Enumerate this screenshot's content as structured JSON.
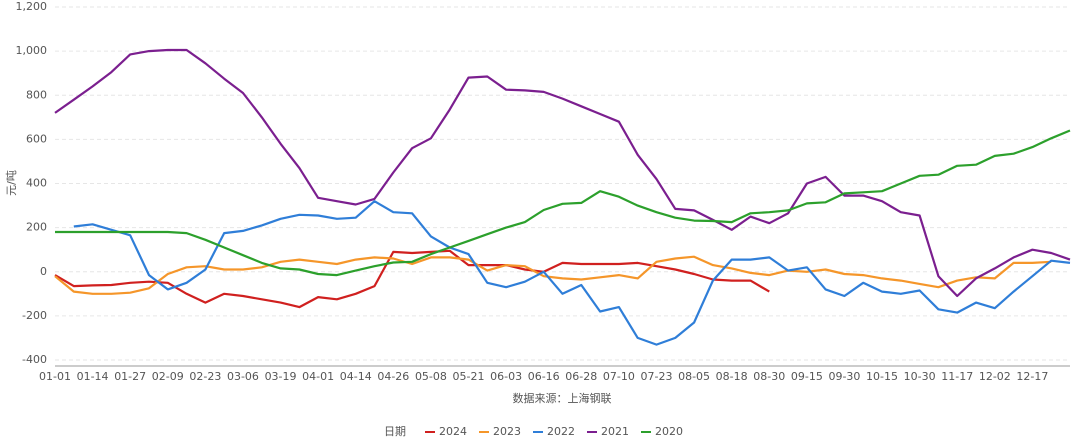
{
  "chart_data": {
    "type": "line",
    "y_label": "元/吨",
    "source": "数据来源：上海钢联",
    "legend_title": "日期",
    "categories": [
      "01-01",
      null,
      "01-14",
      null,
      "01-27",
      null,
      "02-09",
      null,
      "02-23",
      null,
      "03-06",
      null,
      "03-19",
      null,
      "04-01",
      null,
      "04-14",
      null,
      "04-26",
      null,
      "05-08",
      null,
      "05-21",
      null,
      "06-03",
      null,
      "06-16",
      null,
      "06-28",
      null,
      "07-10",
      null,
      "07-23",
      null,
      "08-05",
      null,
      "08-18",
      null,
      "08-30",
      null,
      "09-15",
      null,
      "09-30",
      null,
      "10-15",
      null,
      "10-30",
      null,
      "11-17",
      null,
      "12-02",
      null,
      "12-17",
      null,
      null
    ],
    "ylim": [
      -400,
      1200
    ],
    "yticks": [
      -400,
      -200,
      0,
      200,
      400,
      600,
      800,
      {
        "value": 1000,
        "label": "1,000"
      },
      {
        "value": 1200,
        "label": "1,200"
      }
    ],
    "grid": true,
    "legend_position": "bottom",
    "series": [
      {
        "name": "2024",
        "color": "#d0201f",
        "values": [
          -15,
          -65,
          -62,
          -60,
          -50,
          -45,
          -50,
          -100,
          -140,
          -100,
          -110,
          -125,
          -140,
          -160,
          -115,
          -125,
          -100,
          -65,
          90,
          85,
          90,
          95,
          30,
          30,
          30,
          10,
          0,
          40,
          35,
          35,
          35,
          40,
          25,
          10,
          -10,
          -35,
          -40,
          -40,
          -90,
          null,
          null,
          null,
          null,
          null,
          null,
          null,
          null,
          null,
          null,
          null,
          null,
          null,
          null,
          null,
          null
        ]
      },
      {
        "name": "2023",
        "color": "#f5962a",
        "values": [
          -20,
          -90,
          -100,
          -100,
          -95,
          -75,
          -10,
          20,
          25,
          10,
          10,
          20,
          45,
          55,
          45,
          35,
          55,
          65,
          60,
          35,
          65,
          65,
          55,
          5,
          30,
          25,
          -20,
          -30,
          -35,
          -25,
          -15,
          -30,
          45,
          60,
          68,
          30,
          15,
          -5,
          -15,
          5,
          0,
          10,
          -10,
          -15,
          -30,
          -40,
          -55,
          -70,
          -40,
          -25,
          -30,
          40,
          40,
          45,
          null
        ]
      },
      {
        "name": "2022",
        "color": "#2f7ed8",
        "values": [
          null,
          205,
          215,
          190,
          165,
          -15,
          -80,
          -50,
          10,
          175,
          185,
          210,
          240,
          258,
          255,
          240,
          245,
          320,
          270,
          265,
          160,
          110,
          80,
          -50,
          -70,
          -45,
          0,
          -100,
          -60,
          -180,
          -160,
          -300,
          -330,
          -300,
          -230,
          -40,
          55,
          55,
          65,
          5,
          20,
          -80,
          -110,
          -50,
          -90,
          -100,
          -85,
          -170,
          -185,
          -140,
          -165,
          -90,
          -20,
          50,
          40
        ]
      },
      {
        "name": "2021",
        "color": "#7b1f8f",
        "values": [
          720,
          780,
          840,
          905,
          985,
          1000,
          1005,
          1005,
          945,
          875,
          810,
          700,
          580,
          470,
          335,
          320,
          305,
          330,
          450,
          560,
          605,
          735,
          880,
          885,
          825,
          822,
          815,
          785,
          750,
          715,
          680,
          530,
          420,
          285,
          278,
          235,
          190,
          250,
          220,
          265,
          400,
          430,
          345,
          345,
          320,
          270,
          255,
          -20,
          -110,
          -30,
          15,
          65,
          100,
          85,
          55
        ]
      },
      {
        "name": "2020",
        "color": "#2ca02c",
        "values": [
          180,
          180,
          180,
          180,
          180,
          180,
          180,
          175,
          145,
          110,
          75,
          40,
          15,
          10,
          -10,
          -15,
          5,
          25,
          42,
          45,
          80,
          110,
          140,
          170,
          200,
          225,
          280,
          308,
          312,
          365,
          340,
          300,
          270,
          245,
          232,
          230,
          225,
          265,
          270,
          278,
          310,
          315,
          355,
          360,
          365,
          400,
          435,
          440,
          480,
          485,
          525,
          535,
          565,
          605,
          640
        ]
      }
    ]
  }
}
